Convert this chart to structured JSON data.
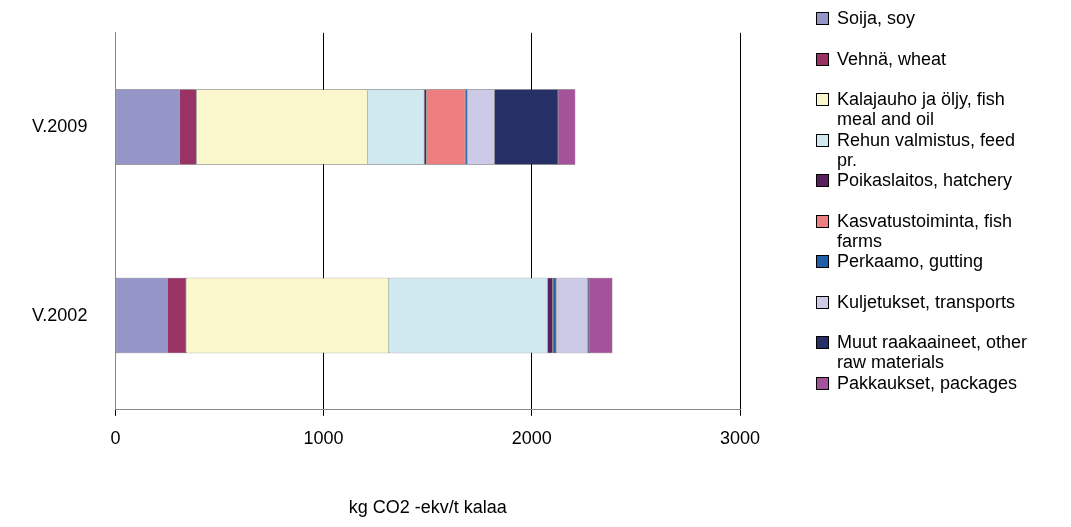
{
  "chart_data": {
    "type": "bar",
    "orientation": "horizontal",
    "stacked": true,
    "xlabel": "kg CO2 -ekv/t kalaa",
    "categories": [
      "V.2009",
      "V.2002"
    ],
    "xlim": [
      0,
      3000
    ],
    "xticks": [
      0,
      1000,
      2000,
      3000
    ],
    "grid": "x",
    "legend": "right",
    "series": [
      {
        "name": "Soija, soy",
        "color": "#9595c8",
        "values": [
          308,
          250
        ]
      },
      {
        "name": "Vehnä, wheat",
        "color": "#993366",
        "values": [
          81,
          89
        ]
      },
      {
        "name": "Kalajauho ja öljy, fish meal and oil",
        "color": "#faf7cc",
        "values": [
          823,
          974
        ]
      },
      {
        "name": "Rehun valmistus, feed pr.",
        "color": "#d0e8f0",
        "values": [
          271,
          763
        ]
      },
      {
        "name": "Poikaslaitos, hatchery",
        "color": "#5a1f5e",
        "values": [
          11,
          23
        ]
      },
      {
        "name": "Kasvatustoiminta, fish farms",
        "color": "#ef7e80",
        "values": [
          186,
          3
        ]
      },
      {
        "name": "Perkaamo, gutting",
        "color": "#1f5fa8",
        "values": [
          10,
          15
        ]
      },
      {
        "name": "Kuljetukset, transports",
        "color": "#cccae6",
        "values": [
          130,
          151
        ]
      },
      {
        "name": "Muut raakaaineet, other raw materials",
        "color": "#262f66",
        "values": [
          306,
          6
        ]
      },
      {
        "name": "Pakkaukset, packages",
        "color": "#a4529a",
        "values": [
          83,
          113
        ]
      }
    ]
  }
}
